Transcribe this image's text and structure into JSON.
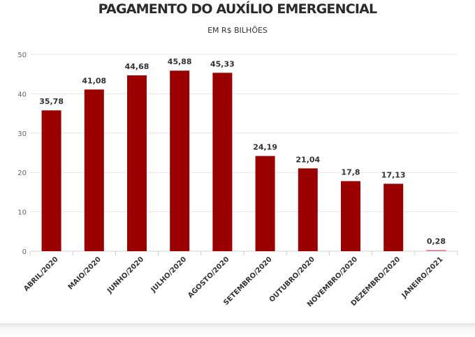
{
  "chart_data": {
    "type": "bar",
    "title": "PAGAMENTO DO AUXÍLIO EMERGENCIAL",
    "subtitle": "EM R$ BILHÕES",
    "categories": [
      "ABRIL/2020",
      "MAIO/2020",
      "JUNHO/2020",
      "JULHO/2020",
      "AGOSTO/2020",
      "SETEMBRO/2020",
      "OUTUBRO/2020",
      "NOVEMBRO/2020",
      "DEZEMBRO/2020",
      "JANEIRO/2021"
    ],
    "values": [
      35.78,
      41.08,
      44.68,
      45.88,
      45.33,
      24.19,
      21.04,
      17.8,
      17.13,
      0.28
    ],
    "value_labels": [
      "35,78",
      "41,08",
      "44,68",
      "45,88",
      "45,33",
      "24,19",
      "21,04",
      "17,8",
      "17,13",
      "0,28"
    ],
    "yticks": [
      "0",
      "10",
      "20",
      "30",
      "40",
      "50"
    ],
    "ylim": [
      0,
      50
    ],
    "grid": true,
    "colors": {
      "bar": "#9b0000",
      "last_bar": "#e07080"
    }
  }
}
